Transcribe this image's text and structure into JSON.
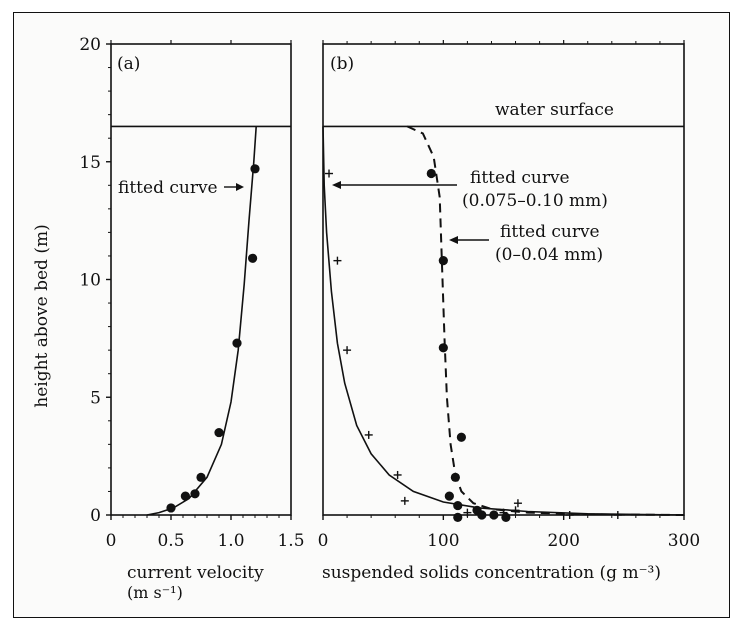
{
  "figure": {
    "background": "#fbfbfa",
    "ink": "#111111"
  },
  "chart_data": [
    {
      "panel": "(a)",
      "type": "scatter",
      "ylabel": "height above bed (m)",
      "xlabel_line1": "current velocity",
      "xlabel_line2": "(m s⁻¹)",
      "xlim": [
        0,
        1.5
      ],
      "ylim": [
        0,
        20
      ],
      "xticks": [
        "0",
        "0.5",
        "1.0",
        "1.5"
      ],
      "yticks": [
        "0",
        "5",
        "10",
        "15",
        "20"
      ],
      "water_surface_height": 16.5,
      "points": [
        [
          0.5,
          0.3
        ],
        [
          0.62,
          0.8
        ],
        [
          0.7,
          0.9
        ],
        [
          0.75,
          1.6
        ],
        [
          0.9,
          3.5
        ],
        [
          1.05,
          7.3
        ],
        [
          1.18,
          10.9
        ],
        [
          1.2,
          14.7
        ]
      ],
      "curve": {
        "label": "fitted curve",
        "points": [
          [
            0.3,
            0.0
          ],
          [
            0.4,
            0.1
          ],
          [
            0.52,
            0.3
          ],
          [
            0.65,
            0.7
          ],
          [
            0.8,
            1.6
          ],
          [
            0.92,
            3.0
          ],
          [
            1.0,
            4.8
          ],
          [
            1.06,
            7.0
          ],
          [
            1.11,
            9.8
          ],
          [
            1.15,
            12.5
          ],
          [
            1.19,
            15.0
          ],
          [
            1.21,
            16.5
          ]
        ]
      },
      "annotations": [
        {
          "text": "fitted curve",
          "target": [
            1.17,
            14.2
          ]
        }
      ]
    },
    {
      "panel": "(b)",
      "type": "scatter",
      "xlabel": "suspended solids concentration (g m⁻³)",
      "xlim": [
        0,
        300
      ],
      "ylim": [
        0,
        20
      ],
      "xticks": [
        "0",
        "100",
        "200",
        "300"
      ],
      "water_surface_label": "water surface",
      "water_surface_height": 16.5,
      "series": [
        {
          "name": "0.075–0.10 mm",
          "marker": "plus",
          "style": "solid",
          "points": [
            [
              5,
              14.5
            ],
            [
              12,
              10.8
            ],
            [
              20,
              7.0
            ],
            [
              38,
              3.4
            ],
            [
              62,
              1.7
            ],
            [
              68,
              0.6
            ],
            [
              120,
              0.1
            ],
            [
              150,
              0.1
            ],
            [
              162,
              0.5
            ],
            [
              160,
              0.2
            ],
            [
              205,
              0.0
            ],
            [
              245,
              0.0
            ]
          ],
          "curve": [
            [
              0,
              16.5
            ],
            [
              1,
              14.0
            ],
            [
              3,
              12.0
            ],
            [
              7,
              9.5
            ],
            [
              12,
              7.3
            ],
            [
              18,
              5.6
            ],
            [
              28,
              3.8
            ],
            [
              40,
              2.6
            ],
            [
              55,
              1.7
            ],
            [
              75,
              1.0
            ],
            [
              100,
              0.55
            ],
            [
              130,
              0.3
            ],
            [
              170,
              0.15
            ],
            [
              220,
              0.05
            ],
            [
              300,
              0.0
            ]
          ],
          "curve_label_line1": "fitted curve",
          "curve_label_line2": "(0.075–0.10 mm)"
        },
        {
          "name": "0–0.04 mm",
          "marker": "dot",
          "style": "dashed",
          "points": [
            [
              90,
              14.5
            ],
            [
              100,
              10.8
            ],
            [
              100,
              7.1
            ],
            [
              115,
              3.3
            ],
            [
              110,
              1.6
            ],
            [
              105,
              0.8
            ],
            [
              112,
              0.4
            ],
            [
              128,
              0.2
            ],
            [
              132,
              0.0
            ],
            [
              142,
              0.0
            ],
            [
              152,
              -0.1
            ],
            [
              112,
              -0.1
            ]
          ],
          "curve": [
            [
              70,
              16.5
            ],
            [
              83,
              16.2
            ],
            [
              92,
              15.2
            ],
            [
              97,
              13.5
            ],
            [
              99,
              10.5
            ],
            [
              101,
              7.5
            ],
            [
              103,
              5.0
            ],
            [
              106,
              3.0
            ],
            [
              110,
              1.7
            ],
            [
              115,
              1.0
            ],
            [
              125,
              0.5
            ],
            [
              140,
              0.25
            ],
            [
              170,
              0.1
            ],
            [
              220,
              0.03
            ],
            [
              300,
              0.0
            ]
          ],
          "curve_label_line1": "fitted curve",
          "curve_label_line2": "(0–0.04 mm)"
        }
      ]
    }
  ]
}
